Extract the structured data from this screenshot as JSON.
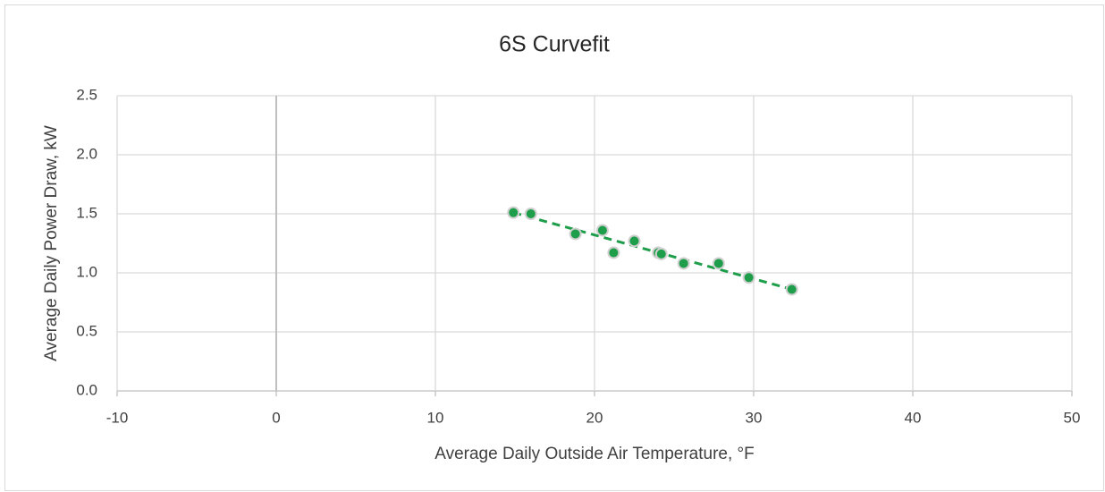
{
  "chart_data": {
    "type": "scatter",
    "title": "6S Curvefit",
    "x_label": "Average Daily Outside Air Temperature, °F",
    "y_label": "Average Daily Power Draw, kW",
    "x": [
      14.9,
      16.0,
      18.8,
      20.5,
      21.2,
      22.5,
      24.0,
      24.2,
      25.6,
      27.8,
      29.7,
      32.4
    ],
    "series": [
      {
        "color": "#1e9e4a",
        "values": [
          1.51,
          1.5,
          1.33,
          1.36,
          1.17,
          1.27,
          1.17,
          1.16,
          1.08,
          1.08,
          0.96,
          0.86
        ]
      }
    ],
    "trendline": {
      "color": "#1e9e4a",
      "x": [
        14.9,
        32.4
      ],
      "values": [
        1.51,
        0.86
      ]
    },
    "xlim": [
      -10,
      50
    ],
    "xticks": [
      -10,
      0,
      10,
      20,
      30,
      40,
      50
    ],
    "ylim": [
      0,
      2.5
    ],
    "yticks": [
      {
        "value": 0,
        "label": "0.0"
      },
      0.5,
      {
        "value": 1,
        "label": "1.0"
      },
      1.5,
      {
        "value": 2,
        "label": "2.0"
      },
      2.5
    ],
    "grid": true
  }
}
